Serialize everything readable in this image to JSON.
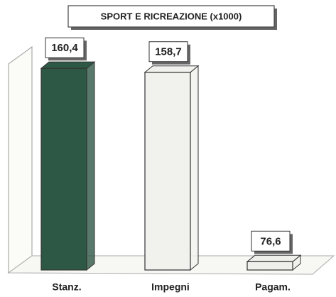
{
  "chart_data": {
    "type": "bar3d",
    "title": "SPORT E RICREAZIONE (x1000)",
    "categories": [
      "Stanz.",
      "Impegni",
      "Pagam."
    ],
    "values": [
      160.4,
      158.7,
      76.6
    ],
    "value_labels": [
      "160,4",
      "158,7",
      "76,6"
    ],
    "colors": [
      "#2e5846",
      "#f1f1ee",
      "#efefec"
    ],
    "ylim": [
      73,
      166
    ]
  }
}
